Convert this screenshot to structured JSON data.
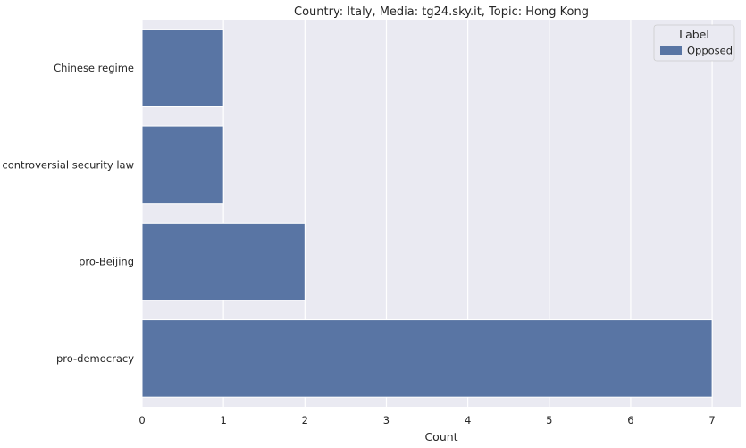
{
  "chart_data": {
    "type": "bar",
    "orientation": "horizontal",
    "title": "Country: Italy, Media: tg24.sky.it, Topic: Hong Kong",
    "xlabel": "Count",
    "ylabel": "",
    "categories": [
      "Chinese regime",
      "controversial security law",
      "pro-Beijing",
      "pro-democracy"
    ],
    "series": [
      {
        "name": "Opposed",
        "values": [
          1,
          1,
          2,
          7
        ],
        "color": "#5975a4"
      }
    ],
    "xlim": [
      0,
      7.35
    ],
    "xticks": [
      0,
      1,
      2,
      3,
      4,
      5,
      6,
      7
    ],
    "grid": true,
    "legend": {
      "title": "Label",
      "placement": "top-right"
    },
    "colors": {
      "plot_background": "#eaeaf2",
      "grid": "#ffffff"
    }
  }
}
